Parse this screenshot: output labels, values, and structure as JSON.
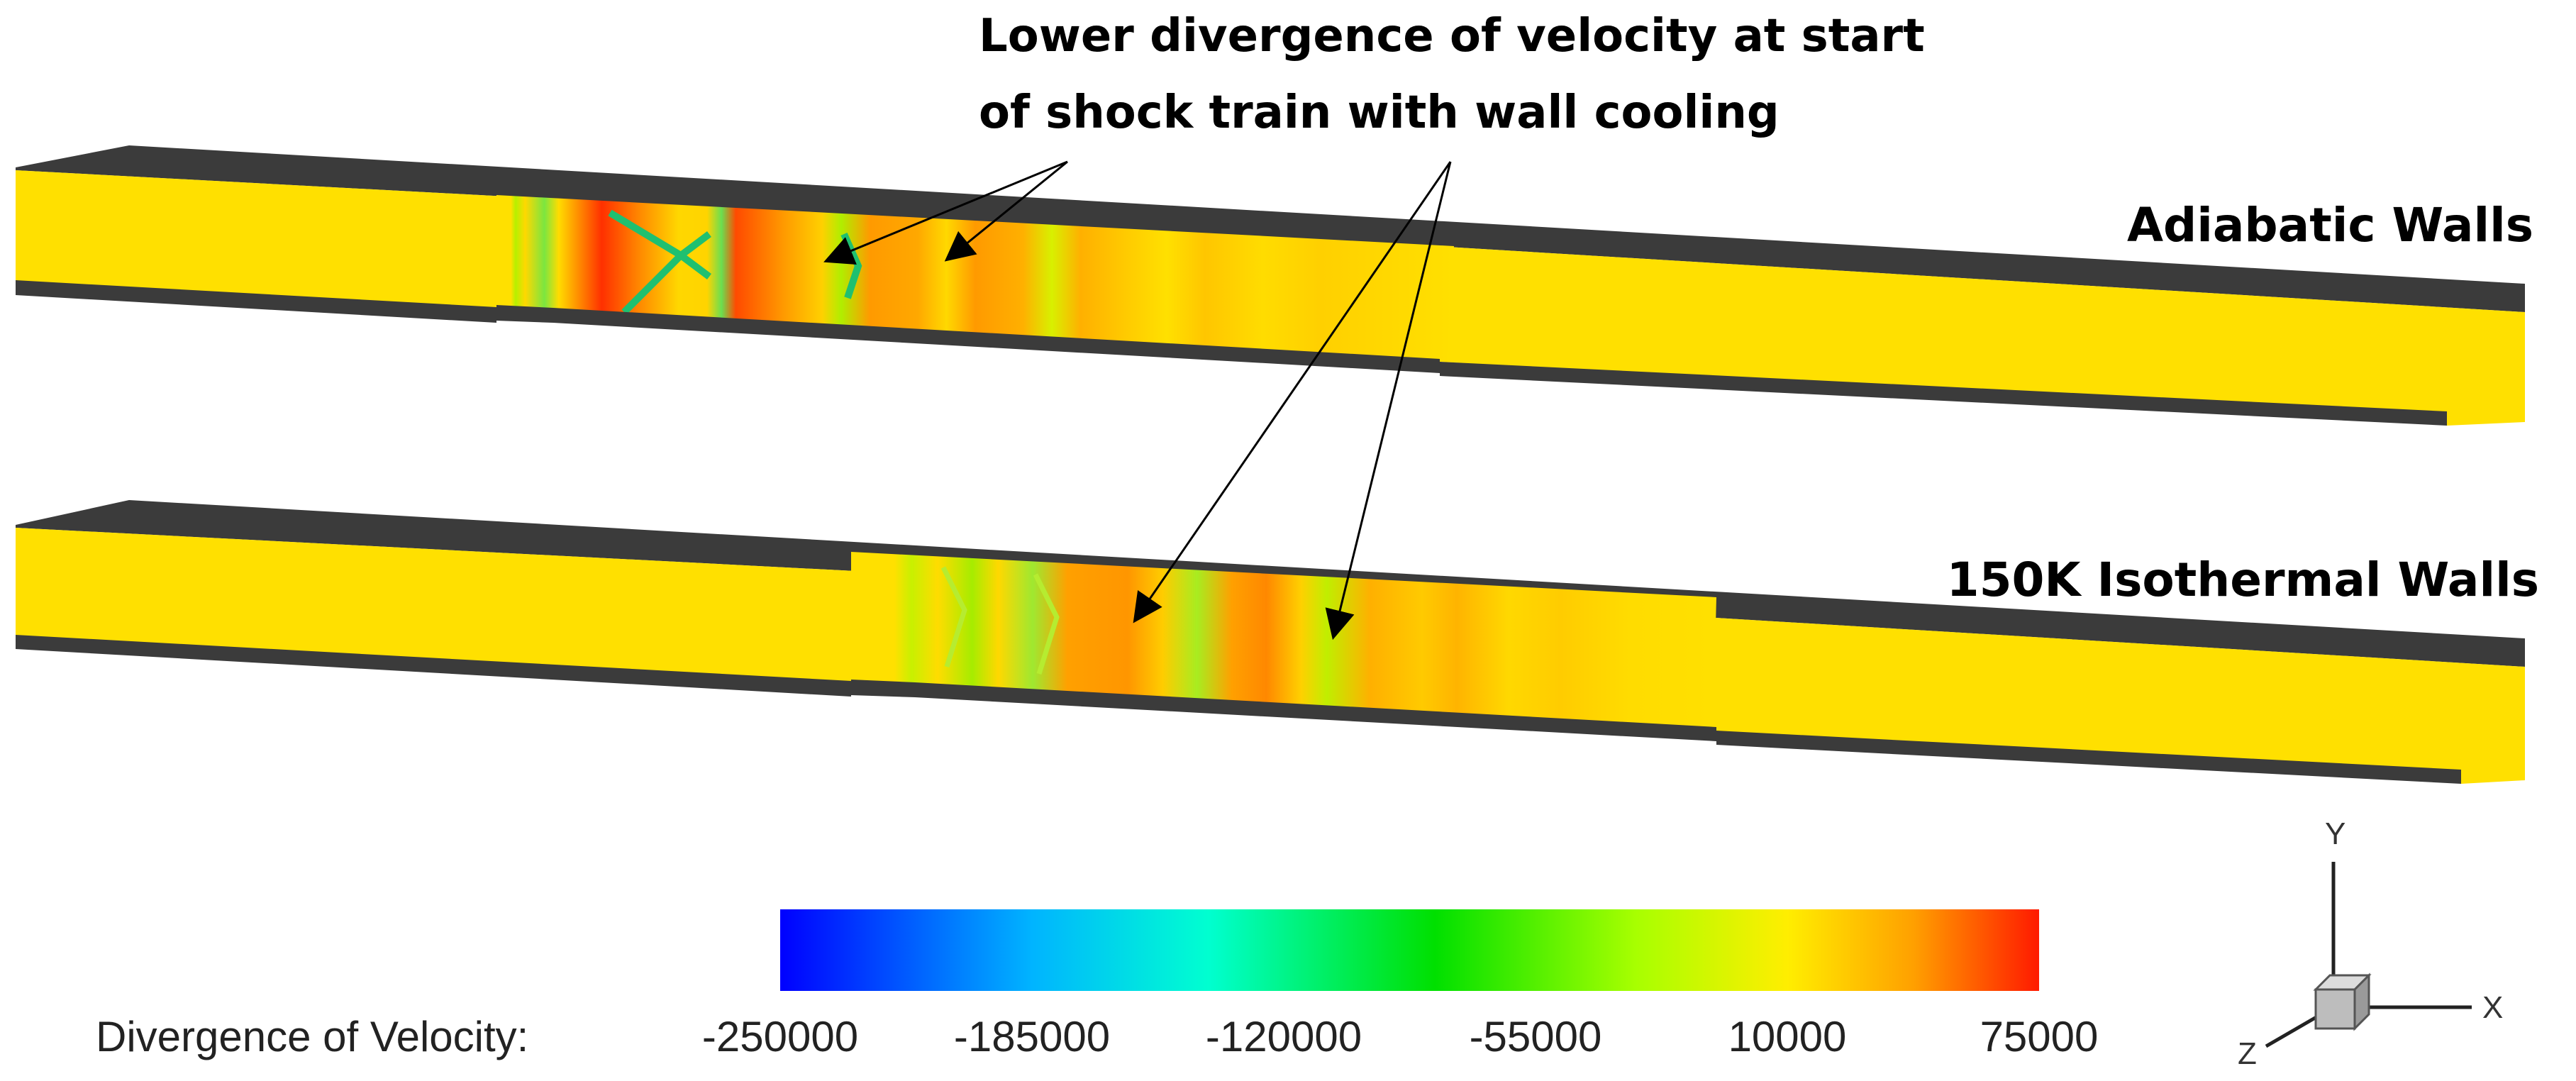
{
  "annotation": {
    "line1": "Lower divergence of velocity at start",
    "line2": "of shock train with wall cooling"
  },
  "panels": {
    "adiabatic": {
      "label": "Adiabatic Walls"
    },
    "isothermal": {
      "label": "150K Isothermal Walls"
    }
  },
  "colorbar": {
    "title": "Divergence of Velocity:",
    "ticks": [
      "-250000",
      "-185000",
      "-120000",
      "-55000",
      "10000",
      "75000"
    ],
    "range": [
      -250000,
      75000
    ]
  },
  "axes": {
    "x": "X",
    "y": "Y",
    "z": "Z"
  },
  "colors": {
    "wall": "#3a3a3a",
    "base": "#ffdd00",
    "low": "#0000ff",
    "high": "#ff0000"
  }
}
